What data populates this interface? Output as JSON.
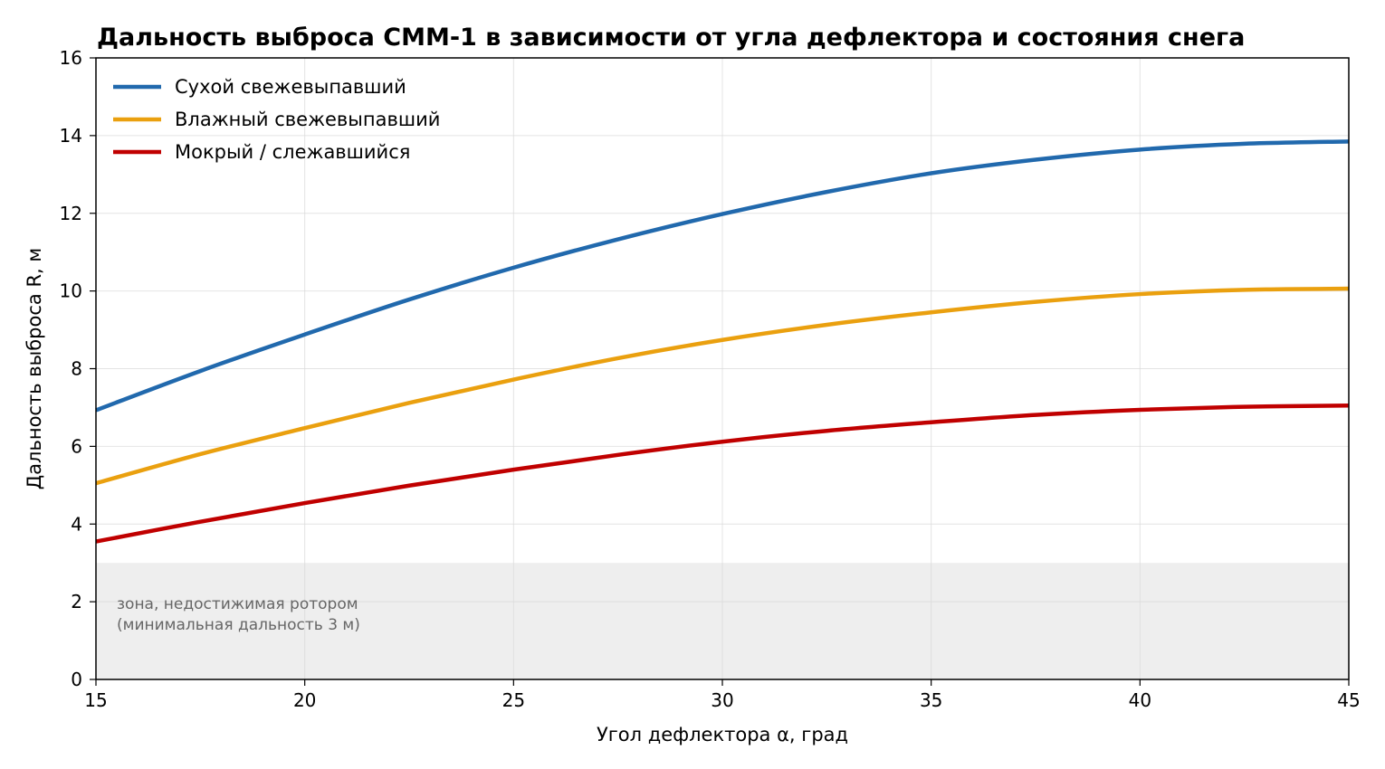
{
  "chart_data": {
    "type": "line",
    "title": "Дальность выброса СММ-1 в зависимости от угла дефлектора и состояния снега",
    "xlabel": "Угол дефлектора α, град",
    "ylabel": "Дальность выброса R, м",
    "xlim": [
      15,
      45
    ],
    "ylim": [
      0,
      16
    ],
    "xticks": [
      "15",
      "20",
      "25",
      "30",
      "35",
      "40",
      "45"
    ],
    "yticks": [
      "0",
      "2",
      "4",
      "6",
      "8",
      "10",
      "12",
      "14",
      "16"
    ],
    "grid": true,
    "legend_position": "top-left",
    "x": [
      15,
      17.5,
      20,
      22.5,
      25,
      27.5,
      30,
      32.5,
      35,
      37.5,
      40,
      42.5,
      45
    ],
    "series": [
      {
        "name": "Сухой свежевыпавший",
        "color": "#2169ad",
        "values": [
          6.93,
          7.94,
          8.88,
          9.78,
          10.6,
          11.33,
          11.98,
          12.55,
          13.03,
          13.38,
          13.64,
          13.79,
          13.85
        ]
      },
      {
        "name": "Влажный свежевыпавший",
        "color": "#eaa00f",
        "values": [
          5.05,
          5.8,
          6.47,
          7.12,
          7.72,
          8.27,
          8.74,
          9.13,
          9.45,
          9.72,
          9.92,
          10.03,
          10.06
        ]
      },
      {
        "name": "Мокрый / слежавшийся",
        "color": "#c00000",
        "values": [
          3.55,
          4.06,
          4.54,
          4.99,
          5.4,
          5.78,
          6.12,
          6.4,
          6.62,
          6.81,
          6.94,
          7.02,
          7.05
        ]
      }
    ],
    "shaded_region": {
      "y_from": 0,
      "y_to": 3,
      "color": "#eeeeee",
      "annotation": [
        "зона, недостижимая ротором",
        "(минимальная дальность 3 м)"
      ]
    }
  }
}
